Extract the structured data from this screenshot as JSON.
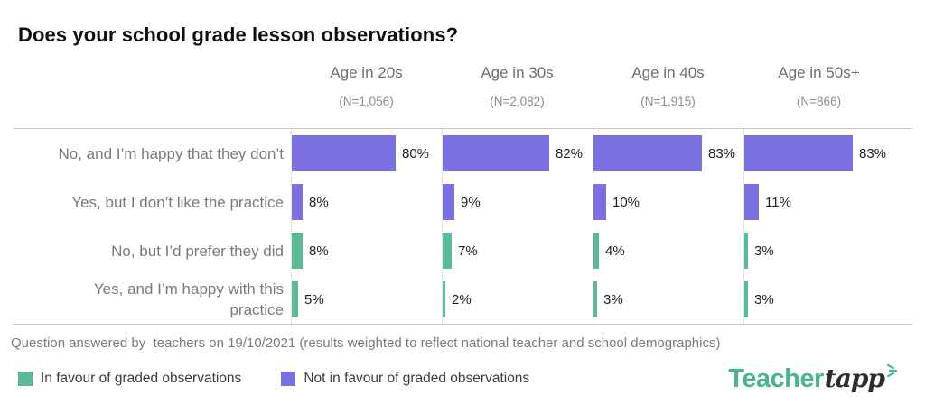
{
  "title": "Does your school grade lesson observations?",
  "footnote": "Question answered by  teachers on 19/10/2021 (results weighted to reflect national teacher and school demographics)",
  "legend": {
    "items": [
      {
        "label": "In favour of graded observations",
        "key": "favour"
      },
      {
        "label": "Not in favour of graded observations",
        "key": "against"
      }
    ]
  },
  "logo": {
    "part1": "Teacher",
    "part2": "tapp",
    "green": "#49b68e",
    "ink": "#2d2d2d"
  },
  "chart_data": {
    "type": "bar",
    "orientation": "horizontal",
    "unit": "%",
    "xlim": [
      0,
      100
    ],
    "grid": false,
    "legend_position": "bottom",
    "colors": {
      "favour": "#5bb993",
      "against": "#7b70e0"
    },
    "groups": [
      {
        "label": "Age in 20s",
        "n_label": "(N=1,056)",
        "n": 1056
      },
      {
        "label": "Age in 30s",
        "n_label": "(N=2,082)",
        "n": 2082
      },
      {
        "label": "Age in 40s",
        "n_label": "(N=1,915)",
        "n": 1915
      },
      {
        "label": "Age in 50s+",
        "n_label": "(N=866)",
        "n": 866
      }
    ],
    "categories": [
      {
        "label": "No, and I’m happy that they don’t",
        "sentiment": "against",
        "values": [
          80,
          82,
          83,
          83
        ]
      },
      {
        "label": "Yes, but I don’t like the practice",
        "sentiment": "against",
        "values": [
          8,
          9,
          10,
          11
        ]
      },
      {
        "label": "No, but I’d prefer they did",
        "sentiment": "favour",
        "values": [
          8,
          7,
          4,
          3
        ]
      },
      {
        "label": "Yes, and I’m happy with this practice",
        "sentiment": "favour",
        "values": [
          5,
          2,
          3,
          3
        ]
      }
    ]
  }
}
